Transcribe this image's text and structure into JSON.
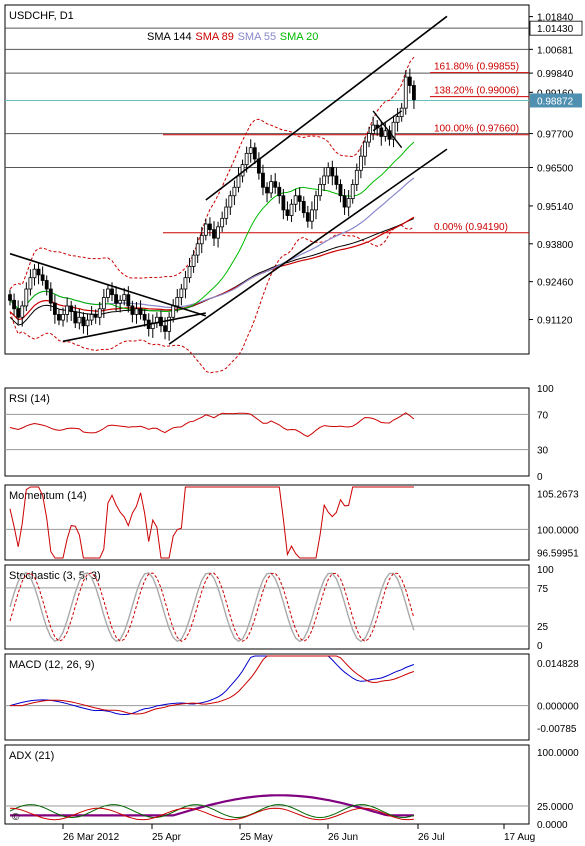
{
  "chart_data": {
    "type": "candlestick",
    "symbol_label": "USDCHF, D1",
    "main": {
      "ylim": [
        0.899,
        1.0225
      ],
      "price_ticks": [
        "1.01840",
        "1.00681",
        "0.99840",
        "0.99160",
        "0.97700",
        "0.96500",
        "0.95140",
        "0.93800",
        "0.92460",
        "0.91120"
      ],
      "highlighted_ticks": [
        {
          "label": "1.01430",
          "value": 1.0143
        },
        {
          "label": "0.98872",
          "value": 0.98872
        }
      ],
      "horizontal_levels": [
        1.0143,
        1.00681,
        0.9984,
        0.98872,
        0.977,
        0.965
      ],
      "legend": [
        {
          "name": "SMA 144",
          "color": "#000000"
        },
        {
          "name": "SMA 89",
          "color": "#cc0000"
        },
        {
          "name": "SMA 55",
          "color": "#8888cc"
        },
        {
          "name": "SMA 20",
          "color": "#00bb00"
        }
      ],
      "fibonacci": [
        {
          "label": "161.80% (0.99855)",
          "value": 0.99855
        },
        {
          "label": "138.20% (0.99006)",
          "value": 0.99006
        },
        {
          "label": "100.00% (0.97660)",
          "value": 0.9766
        },
        {
          "label": "0.00% (0.94190)",
          "value": 0.9419
        }
      ],
      "close_series": [
        0.918,
        0.915,
        0.912,
        0.916,
        0.922,
        0.926,
        0.929,
        0.927,
        0.925,
        0.922,
        0.917,
        0.913,
        0.911,
        0.913,
        0.916,
        0.914,
        0.91,
        0.912,
        0.909,
        0.911,
        0.913,
        0.912,
        0.915,
        0.919,
        0.922,
        0.92,
        0.917,
        0.918,
        0.92,
        0.916,
        0.913,
        0.915,
        0.913,
        0.911,
        0.908,
        0.91,
        0.912,
        0.909,
        0.907,
        0.912,
        0.916,
        0.919,
        0.922,
        0.926,
        0.93,
        0.934,
        0.938,
        0.941,
        0.945,
        0.943,
        0.94,
        0.944,
        0.947,
        0.951,
        0.955,
        0.958,
        0.962,
        0.966,
        0.97,
        0.972,
        0.968,
        0.963,
        0.958,
        0.956,
        0.96,
        0.958,
        0.955,
        0.95,
        0.948,
        0.952,
        0.955,
        0.953,
        0.949,
        0.946,
        0.95,
        0.955,
        0.959,
        0.962,
        0.965,
        0.962,
        0.959,
        0.955,
        0.951,
        0.954,
        0.959,
        0.964,
        0.969,
        0.974,
        0.977,
        0.98,
        0.979,
        0.976,
        0.978,
        0.975,
        0.981,
        0.983,
        0.986,
        0.997,
        0.994,
        0.989
      ]
    },
    "x_labels": [
      "26 Mar 2012",
      "25 Apr",
      "25 May",
      "26 Jun",
      "26 Jul",
      "17 Aug"
    ],
    "subcharts": [
      {
        "name": "RSI (14)",
        "ticks": [
          "100",
          "70",
          "30",
          "0"
        ],
        "levels": [
          "70",
          "30"
        ]
      },
      {
        "name": "Momentum (14)",
        "ticks": [
          "105.2673",
          "100.0000",
          "96.59951"
        ],
        "levels": [
          "100.0000"
        ]
      },
      {
        "name": "Stochastic (3, 5, 3)",
        "ticks": [
          "100",
          "75",
          "25",
          "0"
        ],
        "levels": [
          "75",
          "25"
        ]
      },
      {
        "name": "MACD (12, 26, 9)",
        "ticks": [
          "0.014828",
          "0.000000",
          "-0.00785"
        ],
        "levels": [
          "0.000000"
        ]
      },
      {
        "name": "ADX (21)",
        "ticks": [
          "100.0000",
          "25.0000",
          "0.0000"
        ],
        "levels": [
          "25.0000"
        ]
      }
    ],
    "colors": {
      "bull": "#ffffff",
      "bear": "#000000",
      "grid": "#c0c0c0",
      "fib": "#cc0000",
      "price_box": "#4f8fb0",
      "highlight_line": "#66c0c0"
    }
  }
}
